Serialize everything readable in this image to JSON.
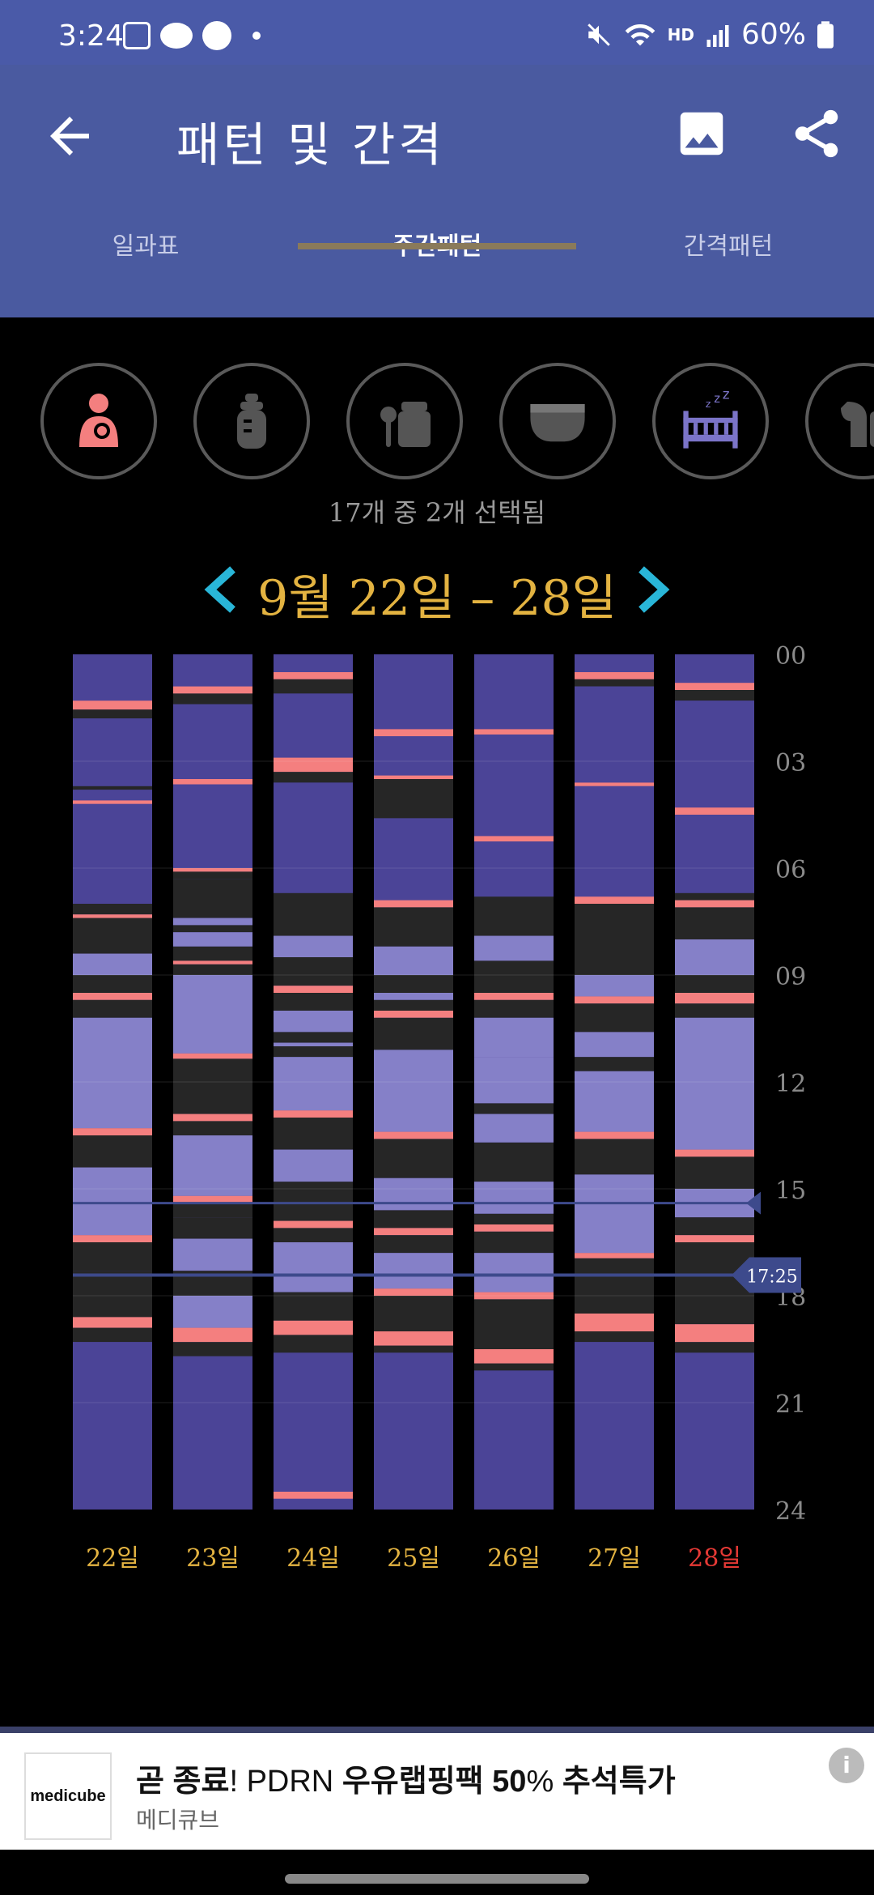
{
  "status_bar": {
    "time": "3:24",
    "battery": "60%",
    "hd_label": "HD"
  },
  "header": {
    "title": "패턴 및 간격"
  },
  "tabs": [
    {
      "label": "일과표",
      "active": false
    },
    {
      "label": "주간패턴",
      "active": true
    },
    {
      "label": "간격패턴",
      "active": false
    }
  ],
  "filters": {
    "icons": [
      "breastfeeding-icon",
      "bottle-icon",
      "baby-food-icon",
      "diaper-icon",
      "sleep-crib-icon",
      "pump-icon"
    ],
    "selected_count_text": "17개 중 2개 선택됨"
  },
  "date_range": {
    "label": "9월 22일 – 28일"
  },
  "colors": {
    "sleep": "#4b4497",
    "light": "#8580c8",
    "dark": "#262626",
    "feeding": "#f47f7f",
    "accent_gold": "#e3b341",
    "today_red": "#e53935",
    "current_marker": "#3d4a8c"
  },
  "chart_data": {
    "type": "timeline",
    "y_ticks": [
      "00",
      "03",
      "06",
      "09",
      "12",
      "15",
      "18",
      "21",
      "24"
    ],
    "ylim": [
      0,
      24
    ],
    "current_time_label": "17:25",
    "current_time_hours": 17.42,
    "marker_15_hours": 15.4,
    "days": [
      {
        "label": "22일",
        "today": false,
        "segments": [
          [
            0,
            1.3,
            "sleep"
          ],
          [
            1.3,
            1.55,
            "feeding"
          ],
          [
            1.55,
            1.8,
            "dark"
          ],
          [
            1.8,
            3.7,
            "sleep"
          ],
          [
            3.7,
            3.8,
            "dark"
          ],
          [
            3.8,
            4.1,
            "sleep"
          ],
          [
            4.1,
            4.2,
            "feeding"
          ],
          [
            4.2,
            7.0,
            "sleep"
          ],
          [
            7.0,
            7.3,
            "dark"
          ],
          [
            7.3,
            7.4,
            "feeding"
          ],
          [
            7.4,
            8.4,
            "dark"
          ],
          [
            8.4,
            9.0,
            "light"
          ],
          [
            9.0,
            9.5,
            "dark"
          ],
          [
            9.5,
            9.7,
            "feeding"
          ],
          [
            9.7,
            10.2,
            "dark"
          ],
          [
            10.2,
            13.3,
            "light"
          ],
          [
            13.3,
            13.5,
            "feeding"
          ],
          [
            13.5,
            14.4,
            "dark"
          ],
          [
            14.4,
            16.3,
            "light"
          ],
          [
            16.3,
            16.5,
            "feeding"
          ],
          [
            16.5,
            17.3,
            "dark"
          ],
          [
            17.3,
            18.6,
            "dark"
          ],
          [
            18.6,
            18.9,
            "feeding"
          ],
          [
            18.9,
            19.3,
            "dark"
          ],
          [
            19.3,
            24,
            "sleep"
          ]
        ]
      },
      {
        "label": "23일",
        "today": false,
        "segments": [
          [
            0,
            0.9,
            "sleep"
          ],
          [
            0.9,
            1.1,
            "feeding"
          ],
          [
            1.1,
            1.4,
            "dark"
          ],
          [
            1.4,
            3.5,
            "sleep"
          ],
          [
            3.5,
            3.65,
            "feeding"
          ],
          [
            3.65,
            6.0,
            "sleep"
          ],
          [
            6.0,
            6.1,
            "feeding"
          ],
          [
            6.1,
            6.3,
            "dark"
          ],
          [
            6.3,
            7.4,
            "dark"
          ],
          [
            7.4,
            7.6,
            "light"
          ],
          [
            7.6,
            7.8,
            "dark"
          ],
          [
            7.8,
            8.2,
            "light"
          ],
          [
            8.2,
            8.6,
            "dark"
          ],
          [
            8.6,
            8.7,
            "feeding"
          ],
          [
            8.7,
            9.0,
            "dark"
          ],
          [
            9.0,
            11.2,
            "light"
          ],
          [
            11.2,
            11.35,
            "feeding"
          ],
          [
            11.35,
            12.9,
            "dark"
          ],
          [
            12.9,
            13.1,
            "feeding"
          ],
          [
            13.1,
            13.5,
            "dark"
          ],
          [
            13.5,
            15.2,
            "light"
          ],
          [
            15.2,
            15.4,
            "feeding"
          ],
          [
            15.4,
            15.8,
            "dark"
          ],
          [
            15.8,
            16.4,
            "dark"
          ],
          [
            16.4,
            17.3,
            "light"
          ],
          [
            17.3,
            18.0,
            "dark"
          ],
          [
            18.0,
            18.9,
            "light"
          ],
          [
            18.9,
            19.3,
            "feeding"
          ],
          [
            19.3,
            19.7,
            "dark"
          ],
          [
            19.7,
            24,
            "sleep"
          ]
        ]
      },
      {
        "label": "24일",
        "today": false,
        "segments": [
          [
            0,
            0.5,
            "sleep"
          ],
          [
            0.5,
            0.7,
            "feeding"
          ],
          [
            0.7,
            1.1,
            "dark"
          ],
          [
            1.1,
            2.9,
            "sleep"
          ],
          [
            2.9,
            3.3,
            "feeding"
          ],
          [
            3.3,
            3.6,
            "dark"
          ],
          [
            3.6,
            6.7,
            "sleep"
          ],
          [
            6.7,
            7.9,
            "dark"
          ],
          [
            7.9,
            8.5,
            "light"
          ],
          [
            8.5,
            9.3,
            "dark"
          ],
          [
            9.3,
            9.5,
            "feeding"
          ],
          [
            9.5,
            10.0,
            "dark"
          ],
          [
            10.0,
            10.6,
            "light"
          ],
          [
            10.6,
            10.9,
            "dark"
          ],
          [
            10.9,
            11.0,
            "light"
          ],
          [
            11.0,
            11.3,
            "dark"
          ],
          [
            11.3,
            12.8,
            "light"
          ],
          [
            12.8,
            13.0,
            "feeding"
          ],
          [
            13.0,
            13.9,
            "dark"
          ],
          [
            13.9,
            14.8,
            "light"
          ],
          [
            14.8,
            15.9,
            "dark"
          ],
          [
            15.9,
            16.1,
            "feeding"
          ],
          [
            16.1,
            16.5,
            "dark"
          ],
          [
            16.5,
            17.9,
            "light"
          ],
          [
            17.9,
            18.7,
            "dark"
          ],
          [
            18.7,
            19.1,
            "feeding"
          ],
          [
            19.1,
            19.6,
            "dark"
          ],
          [
            19.6,
            23.5,
            "sleep"
          ],
          [
            23.5,
            23.7,
            "feeding"
          ],
          [
            23.7,
            24,
            "sleep"
          ]
        ]
      },
      {
        "label": "25일",
        "today": false,
        "segments": [
          [
            0,
            2.1,
            "sleep"
          ],
          [
            2.1,
            2.3,
            "feeding"
          ],
          [
            2.3,
            3.4,
            "sleep"
          ],
          [
            3.4,
            3.5,
            "feeding"
          ],
          [
            3.5,
            4.6,
            "dark"
          ],
          [
            4.6,
            6.9,
            "sleep"
          ],
          [
            6.9,
            7.1,
            "feeding"
          ],
          [
            7.1,
            8.2,
            "dark"
          ],
          [
            8.2,
            9.0,
            "light"
          ],
          [
            9.0,
            9.5,
            "dark"
          ],
          [
            9.5,
            9.7,
            "light"
          ],
          [
            9.7,
            10.0,
            "dark"
          ],
          [
            10.0,
            10.2,
            "feeding"
          ],
          [
            10.2,
            11.1,
            "dark"
          ],
          [
            11.1,
            13.4,
            "light"
          ],
          [
            13.4,
            13.6,
            "feeding"
          ],
          [
            13.6,
            14.7,
            "dark"
          ],
          [
            14.7,
            15.6,
            "light"
          ],
          [
            15.6,
            16.1,
            "dark"
          ],
          [
            16.1,
            16.3,
            "feeding"
          ],
          [
            16.3,
            16.8,
            "dark"
          ],
          [
            16.8,
            17.8,
            "light"
          ],
          [
            17.8,
            18.0,
            "feeding"
          ],
          [
            18.0,
            19.0,
            "dark"
          ],
          [
            19.0,
            19.4,
            "feeding"
          ],
          [
            19.4,
            19.6,
            "dark"
          ],
          [
            19.6,
            24,
            "sleep"
          ]
        ]
      },
      {
        "label": "26일",
        "today": false,
        "segments": [
          [
            0,
            2.1,
            "sleep"
          ],
          [
            2.1,
            2.25,
            "feeding"
          ],
          [
            2.25,
            5.1,
            "sleep"
          ],
          [
            5.1,
            5.25,
            "feeding"
          ],
          [
            5.25,
            6.8,
            "sleep"
          ],
          [
            6.8,
            7.9,
            "dark"
          ],
          [
            7.9,
            8.6,
            "light"
          ],
          [
            8.6,
            9.5,
            "dark"
          ],
          [
            9.5,
            9.7,
            "feeding"
          ],
          [
            9.7,
            10.2,
            "dark"
          ],
          [
            10.2,
            11.3,
            "light"
          ],
          [
            11.3,
            12.6,
            "light"
          ],
          [
            12.6,
            12.9,
            "dark"
          ],
          [
            12.9,
            13.7,
            "light"
          ],
          [
            13.7,
            14.8,
            "dark"
          ],
          [
            14.8,
            15.7,
            "light"
          ],
          [
            15.7,
            16.0,
            "dark"
          ],
          [
            16.0,
            16.2,
            "feeding"
          ],
          [
            16.2,
            16.8,
            "dark"
          ],
          [
            16.8,
            17.9,
            "light"
          ],
          [
            17.9,
            18.1,
            "feeding"
          ],
          [
            18.1,
            19.5,
            "dark"
          ],
          [
            19.5,
            19.9,
            "feeding"
          ],
          [
            19.9,
            20.1,
            "dark"
          ],
          [
            20.1,
            24,
            "sleep"
          ]
        ]
      },
      {
        "label": "27일",
        "today": false,
        "segments": [
          [
            0,
            0.5,
            "sleep"
          ],
          [
            0.5,
            0.7,
            "feeding"
          ],
          [
            0.7,
            0.9,
            "dark"
          ],
          [
            0.9,
            3.6,
            "sleep"
          ],
          [
            3.6,
            3.7,
            "feeding"
          ],
          [
            3.7,
            6.8,
            "sleep"
          ],
          [
            6.8,
            7.0,
            "feeding"
          ],
          [
            7.0,
            9.0,
            "dark"
          ],
          [
            9.0,
            9.6,
            "light"
          ],
          [
            9.6,
            9.8,
            "feeding"
          ],
          [
            9.8,
            10.6,
            "dark"
          ],
          [
            10.6,
            11.3,
            "light"
          ],
          [
            11.3,
            11.7,
            "dark"
          ],
          [
            11.7,
            13.4,
            "light"
          ],
          [
            13.4,
            13.6,
            "feeding"
          ],
          [
            13.6,
            14.6,
            "dark"
          ],
          [
            14.6,
            16.8,
            "light"
          ],
          [
            16.8,
            16.95,
            "feeding"
          ],
          [
            16.95,
            18.0,
            "dark"
          ],
          [
            18.0,
            18.5,
            "dark"
          ],
          [
            18.5,
            19.0,
            "feeding"
          ],
          [
            19.0,
            19.3,
            "dark"
          ],
          [
            19.3,
            24,
            "sleep"
          ]
        ]
      },
      {
        "label": "28일",
        "today": true,
        "segments": [
          [
            0,
            0.8,
            "sleep"
          ],
          [
            0.8,
            1.0,
            "feeding"
          ],
          [
            1.0,
            1.3,
            "dark"
          ],
          [
            1.3,
            4.3,
            "sleep"
          ],
          [
            4.3,
            4.5,
            "feeding"
          ],
          [
            4.5,
            6.7,
            "sleep"
          ],
          [
            6.7,
            6.9,
            "dark"
          ],
          [
            6.9,
            7.1,
            "feeding"
          ],
          [
            7.1,
            8.0,
            "dark"
          ],
          [
            8.0,
            9.0,
            "light"
          ],
          [
            9.0,
            9.5,
            "dark"
          ],
          [
            9.5,
            9.8,
            "feeding"
          ],
          [
            9.8,
            10.2,
            "dark"
          ],
          [
            10.2,
            13.9,
            "light"
          ],
          [
            13.9,
            14.1,
            "feeding"
          ],
          [
            14.1,
            15.0,
            "dark"
          ],
          [
            15.0,
            15.8,
            "light"
          ],
          [
            15.8,
            16.3,
            "dark"
          ],
          [
            16.3,
            16.5,
            "feeding"
          ],
          [
            16.5,
            17.4,
            "dark"
          ],
          [
            17.4,
            18.8,
            "dark"
          ],
          [
            18.8,
            19.3,
            "feeding"
          ],
          [
            19.3,
            19.6,
            "dark"
          ],
          [
            19.6,
            24,
            "sleep"
          ]
        ]
      }
    ]
  },
  "ad": {
    "logo_text": "medicube",
    "title_part1": "곧 종료",
    "title_part2": "! PDRN ",
    "title_part3": "우유랩핑팩 50",
    "title_part4": "% ",
    "title_part5": "추석특가",
    "brand": "메디큐브"
  }
}
